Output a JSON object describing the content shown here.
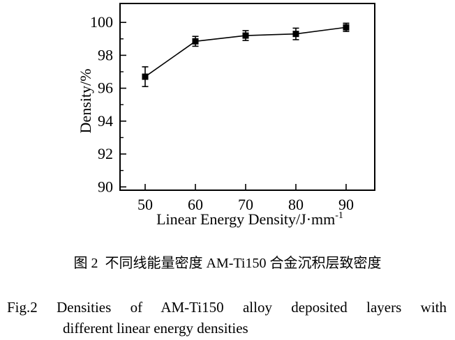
{
  "figure": {
    "caption_zh": "图 2  不同线能量密度 AM-Ti150 合金沉积层致密度",
    "caption_en_line1": "Fig.2  Densities of AM-Ti150 alloy deposited layers with",
    "caption_en_line2": "different linear energy densities"
  },
  "chart_data": {
    "type": "line",
    "title": "",
    "x": [
      50,
      60,
      70,
      80,
      90
    ],
    "y": [
      96.7,
      98.85,
      99.2,
      99.3,
      99.7
    ],
    "y_err": [
      0.6,
      0.3,
      0.3,
      0.35,
      0.25
    ],
    "xlabel": "Linear Energy Density/J·mm",
    "xlabel_superscript": "-1",
    "ylabel": "Density/%",
    "xlim": [
      45,
      95.7
    ],
    "ylim": [
      89.8,
      101.15
    ],
    "x_ticks": [
      50,
      60,
      70,
      80,
      90
    ],
    "y_ticks_major": [
      90,
      92,
      94,
      96,
      98,
      100
    ],
    "y_ticks_minor": [
      91,
      93,
      95,
      97,
      99
    ],
    "grid": false,
    "legend": "none",
    "frame": "box",
    "marker": "filled-square",
    "line_color": "#000000",
    "marker_color": "#000000",
    "text_color": "#000000",
    "background_color": "#ffffff"
  }
}
